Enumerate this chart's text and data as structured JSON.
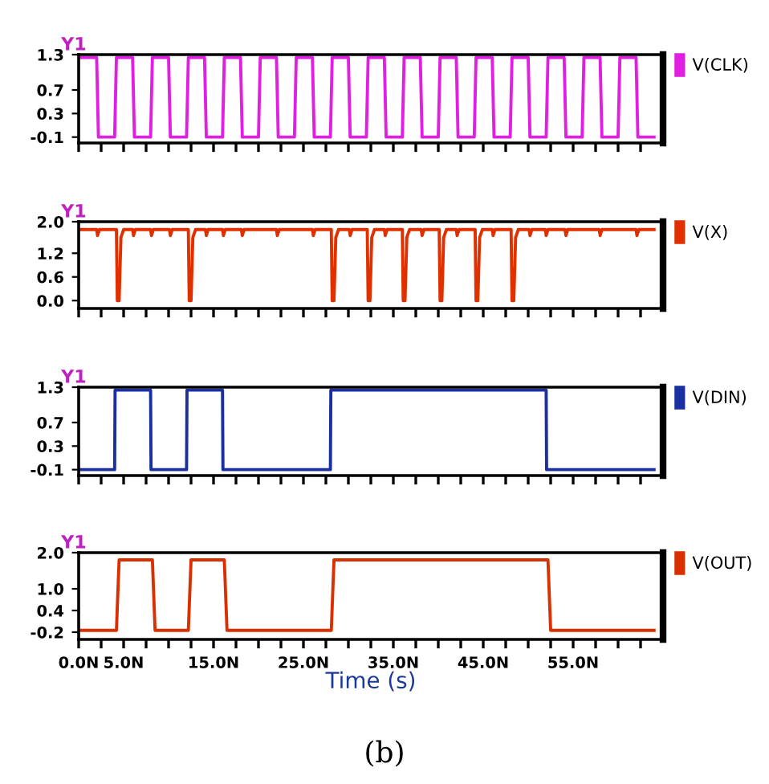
{
  "chart_data": [
    {
      "type": "line",
      "title": "Y1",
      "legend": "right",
      "tick_labels": "y",
      "xlim": [
        0,
        65
      ],
      "ylim": [
        -0.2,
        1.3
      ],
      "yticks": [
        1.3,
        0.7,
        0.3,
        -0.1
      ],
      "xticks": [
        0,
        2.5,
        5,
        7.5,
        10,
        12.5,
        15,
        17.5,
        20,
        22.5,
        25,
        27.5,
        30,
        32.5,
        35,
        37.5,
        40,
        42.5,
        45,
        47.5,
        50,
        52.5,
        55,
        57.5,
        60,
        62.5
      ],
      "series": [
        {
          "name": "V(CLK)",
          "color": "#e020e0",
          "x": [
            0,
            2,
            2.2,
            4,
            4.2,
            6,
            6.2,
            8,
            8.2,
            10,
            10.2,
            12,
            12.2,
            14,
            14.2,
            16,
            16.2,
            18,
            18.2,
            20,
            20.2,
            22,
            22.2,
            24,
            24.2,
            26,
            26.2,
            28,
            28.2,
            30,
            30.2,
            32,
            32.2,
            34,
            34.2,
            36,
            36.2,
            38,
            38.2,
            40,
            40.2,
            42,
            42.2,
            44,
            44.2,
            46,
            46.2,
            48,
            48.2,
            50,
            50.2,
            52,
            52.2,
            54,
            54.2,
            56,
            56.2,
            58,
            58.2,
            60,
            60.2,
            62,
            62.2,
            64
          ],
          "values": [
            1.25,
            1.25,
            -0.1,
            -0.1,
            1.25,
            1.25,
            -0.1,
            -0.1,
            1.25,
            1.25,
            -0.1,
            -0.1,
            1.25,
            1.25,
            -0.1,
            -0.1,
            1.25,
            1.25,
            -0.1,
            -0.1,
            1.25,
            1.25,
            -0.1,
            -0.1,
            1.25,
            1.25,
            -0.1,
            -0.1,
            1.25,
            1.25,
            -0.1,
            -0.1,
            1.25,
            1.25,
            -0.1,
            -0.1,
            1.25,
            1.25,
            -0.1,
            -0.1,
            1.25,
            1.25,
            -0.1,
            -0.1,
            1.25,
            1.25,
            -0.1,
            -0.1,
            1.25,
            1.25,
            -0.1,
            -0.1,
            1.25,
            1.25,
            -0.1,
            -0.1,
            1.25,
            1.25,
            -0.1,
            -0.1,
            1.25,
            1.25,
            -0.1,
            -0.1
          ]
        }
      ]
    },
    {
      "type": "line",
      "title": "Y1",
      "legend": "right",
      "tick_labels": "y",
      "xlim": [
        0,
        65
      ],
      "ylim": [
        -0.2,
        2.0
      ],
      "yticks": [
        {
          "value": 2.0,
          "label": "2.0"
        },
        1.2,
        0.6,
        {
          "value": 0.0,
          "label": "0.0"
        }
      ],
      "xticks": [
        0,
        2.5,
        5,
        7.5,
        10,
        12.5,
        15,
        17.5,
        20,
        22.5,
        25,
        27.5,
        30,
        32.5,
        35,
        37.5,
        40,
        42.5,
        45,
        47.5,
        50,
        52.5,
        55,
        57.5,
        60,
        62.5
      ],
      "series": [
        {
          "name": "V(X)",
          "color": "#e03000",
          "x": [
            0,
            2.0,
            2.1,
            2.3,
            4.2,
            4.3,
            4.5,
            4.7,
            5.0,
            6.0,
            6.1,
            6.3,
            8.0,
            8.1,
            8.3,
            10.1,
            10.2,
            10.4,
            12.2,
            12.3,
            12.5,
            12.7,
            13.0,
            14.1,
            14.2,
            14.4,
            16.0,
            16.1,
            16.3,
            18.1,
            18.2,
            18.4,
            22.0,
            22.1,
            22.3,
            26.0,
            26.1,
            26.3,
            28.1,
            28.2,
            28.4,
            28.6,
            28.9,
            30.1,
            30.2,
            30.4,
            32.1,
            32.2,
            32.4,
            32.6,
            32.9,
            34.0,
            34.1,
            34.3,
            36.0,
            36.1,
            36.3,
            36.5,
            36.8,
            38.1,
            38.2,
            38.4,
            40.1,
            40.2,
            40.4,
            40.6,
            40.9,
            42.0,
            42.1,
            42.3,
            44.1,
            44.2,
            44.4,
            44.6,
            44.9,
            46.0,
            46.1,
            46.3,
            48.1,
            48.2,
            48.4,
            48.6,
            48.9,
            50.1,
            50.2,
            50.4,
            51.9,
            52.0,
            52.2,
            54.1,
            54.2,
            54.4,
            57.9,
            58.0,
            58.2,
            62.0,
            62.1,
            62.3,
            64
          ],
          "values": [
            1.8,
            1.8,
            1.65,
            1.8,
            1.8,
            0.0,
            0.0,
            1.6,
            1.8,
            1.8,
            1.65,
            1.8,
            1.8,
            1.65,
            1.8,
            1.8,
            1.65,
            1.8,
            1.8,
            0.0,
            0.0,
            1.6,
            1.8,
            1.8,
            1.65,
            1.8,
            1.8,
            1.65,
            1.8,
            1.8,
            1.65,
            1.8,
            1.8,
            1.65,
            1.8,
            1.8,
            1.65,
            1.8,
            1.8,
            0.0,
            0.0,
            1.6,
            1.8,
            1.8,
            1.65,
            1.8,
            1.8,
            0.0,
            0.0,
            1.6,
            1.8,
            1.8,
            1.65,
            1.8,
            1.8,
            0.0,
            0.0,
            1.6,
            1.8,
            1.8,
            1.65,
            1.8,
            1.8,
            0.0,
            0.0,
            1.6,
            1.8,
            1.8,
            1.65,
            1.8,
            1.8,
            0.0,
            0.0,
            1.6,
            1.8,
            1.8,
            1.65,
            1.8,
            1.8,
            0.0,
            0.0,
            1.6,
            1.8,
            1.8,
            1.65,
            1.8,
            1.8,
            1.65,
            1.8,
            1.8,
            1.65,
            1.8,
            1.8,
            1.65,
            1.8,
            1.8,
            1.65,
            1.8,
            1.8
          ]
        }
      ]
    },
    {
      "type": "line",
      "title": "Y1",
      "legend": "right",
      "tick_labels": "y",
      "xlim": [
        0,
        65
      ],
      "ylim": [
        -0.2,
        1.3
      ],
      "yticks": [
        1.3,
        0.7,
        0.3,
        -0.1
      ],
      "xticks": [
        0,
        2.5,
        5,
        7.5,
        10,
        12.5,
        15,
        17.5,
        20,
        22.5,
        25,
        27.5,
        30,
        32.5,
        35,
        37.5,
        40,
        42.5,
        45,
        47.5,
        50,
        52.5,
        55,
        57.5,
        60,
        62.5
      ],
      "series": [
        {
          "name": "V(DIN)",
          "color": "#1a2fa0",
          "x": [
            0,
            4,
            4.05,
            8,
            8.05,
            12,
            12.05,
            16,
            16.05,
            28,
            28.05,
            52,
            52.05,
            64
          ],
          "values": [
            -0.1,
            -0.1,
            1.25,
            1.25,
            -0.1,
            -0.1,
            1.25,
            1.25,
            -0.1,
            -0.1,
            1.25,
            1.25,
            -0.1,
            -0.1
          ]
        }
      ]
    },
    {
      "type": "line",
      "title": "Y1",
      "legend": "right",
      "xlabel": "Time (s)",
      "annotations": [
        "(b)"
      ],
      "xlim": [
        0,
        65
      ],
      "ylim": [
        -0.4,
        2.0
      ],
      "yticks": [
        {
          "value": 2.0,
          "label": "2.0"
        },
        {
          "value": 1.0,
          "label": "1.0"
        },
        0.4,
        -0.2
      ],
      "xticks": [
        {
          "value": 0,
          "label": "0.0N"
        },
        {
          "value": 2.5,
          "label": null
        },
        {
          "value": 5,
          "label": "5.0N"
        },
        {
          "value": 7.5,
          "label": null
        },
        {
          "value": 10,
          "label": null
        },
        {
          "value": 12.5,
          "label": null
        },
        {
          "value": 15,
          "label": "15.0N"
        },
        {
          "value": 17.5,
          "label": null
        },
        {
          "value": 20,
          "label": null
        },
        {
          "value": 22.5,
          "label": null
        },
        {
          "value": 25,
          "label": "25.0N"
        },
        {
          "value": 27.5,
          "label": null
        },
        {
          "value": 30,
          "label": null
        },
        {
          "value": 32.5,
          "label": null
        },
        {
          "value": 35,
          "label": "35.0N"
        },
        {
          "value": 37.5,
          "label": null
        },
        {
          "value": 40,
          "label": null
        },
        {
          "value": 42.5,
          "label": null
        },
        {
          "value": 45,
          "label": "45.0N"
        },
        {
          "value": 47.5,
          "label": null
        },
        {
          "value": 50,
          "label": null
        },
        {
          "value": 52.5,
          "label": null
        },
        {
          "value": 55,
          "label": "55.0N"
        },
        {
          "value": 57.5,
          "label": null
        },
        {
          "value": 60,
          "label": null
        },
        {
          "value": 62.5,
          "label": null
        }
      ],
      "series": [
        {
          "name": "V(OUT)",
          "color": "#d83000",
          "x": [
            0,
            4.2,
            4.5,
            8.2,
            8.5,
            12.2,
            12.5,
            16.2,
            16.5,
            28.1,
            28.4,
            52.2,
            52.5,
            64
          ],
          "values": [
            -0.15,
            -0.15,
            1.8,
            1.8,
            -0.15,
            -0.15,
            1.8,
            1.8,
            -0.15,
            -0.15,
            1.8,
            1.8,
            -0.15,
            -0.15
          ]
        }
      ]
    }
  ]
}
